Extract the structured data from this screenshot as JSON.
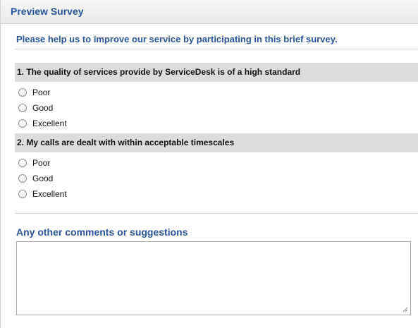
{
  "header": {
    "title": "Preview Survey"
  },
  "intro": "Please help us to improve our service by participating in this brief survey.",
  "questions": [
    {
      "text": "1. The quality of services provide by ServiceDesk is of a high standard",
      "options": [
        "Poor",
        "Good",
        "Excellent"
      ]
    },
    {
      "text": "2. My calls are dealt with within acceptable timescales",
      "options": [
        "Poor",
        "Good",
        "Excellent"
      ]
    }
  ],
  "comments": {
    "label": "Any other comments or suggestions",
    "value": ""
  },
  "colors": {
    "accent": "#26539a",
    "question_bar": "#dcdcdc"
  }
}
